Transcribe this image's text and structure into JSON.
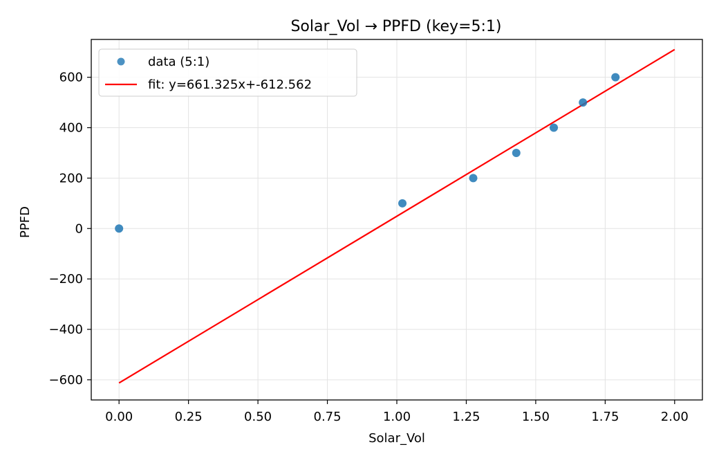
{
  "chart_data": {
    "type": "scatter",
    "title": "Solar_Vol → PPFD (key=5:1)",
    "xlabel": "Solar_Vol",
    "ylabel": "PPFD",
    "xlim": [
      -0.1,
      2.1
    ],
    "ylim": [
      -680,
      750
    ],
    "xticks": [
      0.0,
      0.25,
      0.5,
      0.75,
      1.0,
      1.25,
      1.5,
      1.75,
      2.0
    ],
    "xtick_labels": [
      "0.00",
      "0.25",
      "0.50",
      "0.75",
      "1.00",
      "1.25",
      "1.50",
      "1.75",
      "2.00"
    ],
    "yticks": [
      -600,
      -400,
      -200,
      0,
      200,
      400,
      600
    ],
    "ytick_labels": [
      "−600",
      "−400",
      "−200",
      "0",
      "200",
      "400",
      "600"
    ],
    "grid": true,
    "legend_position": "top-left",
    "series": [
      {
        "name": "data (5:1)",
        "kind": "scatter",
        "color": "#1f77b4",
        "x": [
          0.0,
          1.02,
          1.275,
          1.43,
          1.565,
          1.67,
          1.787
        ],
        "y": [
          0,
          100,
          200,
          300,
          400,
          500,
          600
        ]
      },
      {
        "name": "fit: y=661.325x+-612.562",
        "kind": "line",
        "color": "#ff0000",
        "slope": 661.325,
        "intercept": -612.562,
        "x": [
          0.0,
          2.0
        ]
      }
    ]
  }
}
